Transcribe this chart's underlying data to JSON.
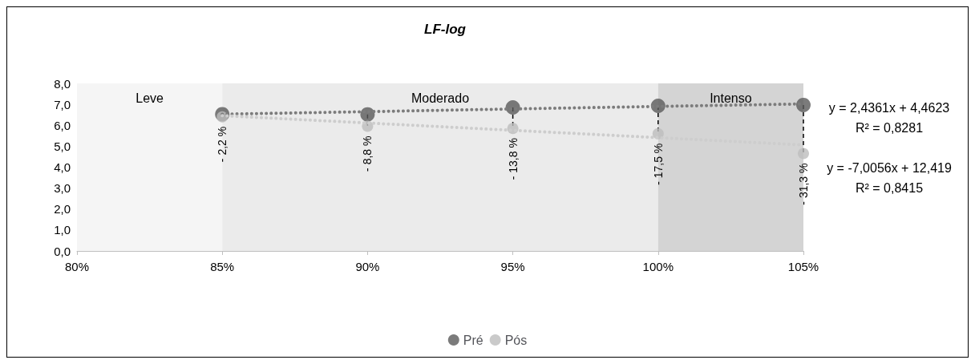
{
  "chart_data": {
    "type": "scatter",
    "title": "LF-log",
    "x": [
      85,
      90,
      95,
      100,
      105
    ],
    "series": [
      {
        "name": "Pré",
        "color": "#5a5a5a",
        "values": [
          6.53,
          6.52,
          6.85,
          6.93,
          6.97
        ]
      },
      {
        "name": "Pós",
        "color": "#bdbdbd",
        "values": [
          6.4,
          5.95,
          5.85,
          5.6,
          4.65
        ]
      },
      {
        "type": "line",
        "color": "#7c7c7c",
        "values": [
          6.53,
          6.65,
          6.78,
          6.9,
          7.02
        ],
        "line_style": "dotted",
        "marker": "none"
      },
      {
        "type": "line",
        "color": "#cdcdcd",
        "values": [
          6.46,
          6.11,
          5.76,
          5.41,
          5.06
        ],
        "line_style": "dotted",
        "marker": "none"
      }
    ],
    "marker": "circle",
    "xlim": [
      80,
      105
    ],
    "xticks": [
      {
        "value": 80,
        "label": "80%"
      },
      {
        "value": 85,
        "label": "85%"
      },
      {
        "value": 90,
        "label": "90%"
      },
      {
        "value": 95,
        "label": "95%"
      },
      {
        "value": 100,
        "label": "100%"
      },
      {
        "value": 105,
        "label": "105%"
      }
    ],
    "ylim": [
      0,
      8
    ],
    "yticks": [
      {
        "value": 0,
        "label": "0,0"
      },
      {
        "value": 1,
        "label": "1,0"
      },
      {
        "value": 2,
        "label": "2,0"
      },
      {
        "value": 3,
        "label": "3,0"
      },
      {
        "value": 4,
        "label": "4,0"
      },
      {
        "value": 5,
        "label": "5,0"
      },
      {
        "value": 6,
        "label": "6,0"
      },
      {
        "value": 7,
        "label": "7,0"
      },
      {
        "value": 8,
        "label": "8,0"
      }
    ],
    "bands": [
      {
        "axis": "x",
        "from": 80,
        "to": 85,
        "label": "Leve",
        "color": "#f5f5f5"
      },
      {
        "axis": "x",
        "from": 85,
        "to": 100,
        "label": "Moderado",
        "color": "#ebebeb"
      },
      {
        "axis": "x",
        "from": 100,
        "to": 105,
        "label": "Intenso",
        "color": "#d4d4d4"
      }
    ],
    "annotations": [
      {
        "text": "- 2,2 %",
        "x": 85,
        "y": 6.4
      },
      {
        "text": "- 8,8 %",
        "x": 90,
        "y": 5.95
      },
      {
        "text": "- 13,8 %",
        "x": 95,
        "y": 5.85
      },
      {
        "text": "- 17,5 %",
        "x": 100,
        "y": 5.6
      },
      {
        "text": "- 31,3 %",
        "x": 105,
        "y": 4.65
      },
      "y = 2,4361x + 4,4623",
      "R² = 0,8281",
      "y = -7,0056x + 12,419",
      "R² = 0,8415"
    ],
    "grid": false,
    "legend": "bottom"
  }
}
